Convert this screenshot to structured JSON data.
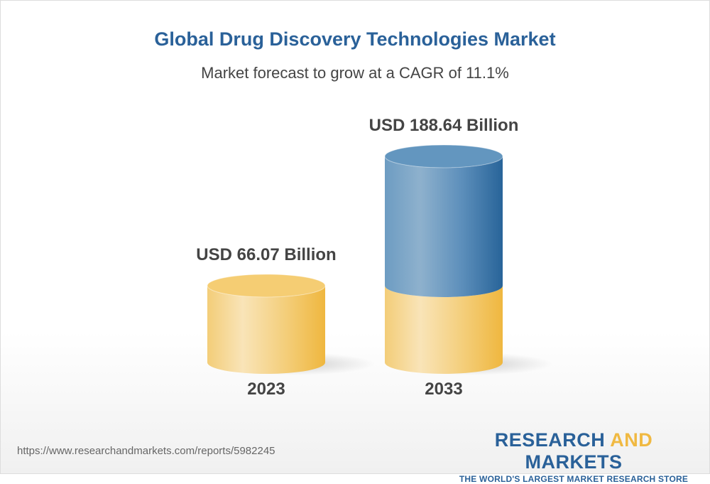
{
  "title": "Global Drug Discovery Technologies Market",
  "subtitle": "Market forecast to grow at a CAGR of 11.1%",
  "chart_data": {
    "type": "bar",
    "style": "3d-cylinder",
    "categories": [
      "2023",
      "2033"
    ],
    "values": [
      66.07,
      188.64
    ],
    "data_labels": [
      "USD 66.07 Billion",
      "USD 188.64 Billion"
    ],
    "unit": "USD Billion",
    "cagr": "11.1%",
    "colors": {
      "base": "#f2c25a",
      "growth": "#2a6199"
    },
    "grid": false
  },
  "footer": {
    "url": "https://www.researchandmarkets.com/reports/5982245",
    "logo_part1": "RESEARCH",
    "logo_part2": "AND",
    "logo_part3": "MARKETS",
    "tagline": "THE WORLD'S LARGEST MARKET RESEARCH STORE"
  }
}
